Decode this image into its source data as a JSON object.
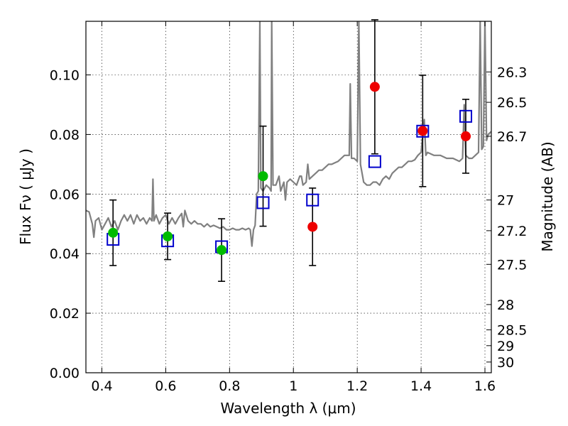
{
  "chart_data": {
    "type": "scatter",
    "xlabel": "Wavelength  λ (μm)",
    "ylabel": "Flux  Fν  ( μJy )",
    "y2label": "Magnitude (AB)",
    "xlim": [
      0.35,
      1.62
    ],
    "ylim": [
      0.0,
      0.118
    ],
    "grid": true,
    "x_ticks": [
      0.4,
      0.6,
      0.8,
      1.0,
      1.2,
      1.4,
      1.6
    ],
    "x_tick_labels": [
      "0.4",
      "0.6",
      "0.8",
      "1",
      "1.2",
      "1.4",
      "1.6"
    ],
    "y_ticks": [
      0.0,
      0.02,
      0.04,
      0.06,
      0.08,
      0.1
    ],
    "y_tick_labels": [
      "0.00",
      "0.02",
      "0.04",
      "0.06",
      "0.08",
      "0.10"
    ],
    "mag_ticks": [
      {
        "label": "26.3",
        "flux": 0.101
      },
      {
        "label": "26.5",
        "flux": 0.0908
      },
      {
        "label": "26.7",
        "flux": 0.0794
      },
      {
        "label": "27",
        "flux": 0.058
      },
      {
        "label": "27.2",
        "flux": 0.0477
      },
      {
        "label": "27.5",
        "flux": 0.0364
      },
      {
        "label": "28",
        "flux": 0.0229
      },
      {
        "label": "28.5",
        "flux": 0.0144
      },
      {
        "label": "29",
        "flux": 0.0091
      },
      {
        "label": "30",
        "flux": 0.0036
      }
    ],
    "colors": {
      "model": "#808080",
      "optical": "#00bb00",
      "nir": "#ee0000",
      "model_band": "#0000cc",
      "errorbar": "#000000"
    },
    "series": [
      {
        "points": [
          {
            "x": 0.435,
            "y": 0.047,
            "err": 0.011
          },
          {
            "x": 0.606,
            "y": 0.0458,
            "err": 0.0078
          },
          {
            "x": 0.775,
            "y": 0.0412,
            "err": 0.0105
          },
          {
            "x": 0.905,
            "y": 0.066,
            "err": 0.0168
          }
        ]
      },
      {
        "points": [
          {
            "x": 1.06,
            "y": 0.049,
            "err": 0.013
          },
          {
            "x": 1.255,
            "y": 0.096,
            "err": 0.0225
          },
          {
            "x": 1.405,
            "y": 0.0812,
            "err": 0.0187
          },
          {
            "x": 1.54,
            "y": 0.0794,
            "err": 0.0124
          }
        ]
      },
      {
        "points": [
          {
            "x": 0.435,
            "y": 0.0448
          },
          {
            "x": 0.606,
            "y": 0.0443
          },
          {
            "x": 0.775,
            "y": 0.0423
          },
          {
            "x": 0.905,
            "y": 0.0571
          },
          {
            "x": 1.06,
            "y": 0.058
          },
          {
            "x": 1.255,
            "y": 0.0709
          },
          {
            "x": 1.405,
            "y": 0.0811
          },
          {
            "x": 1.54,
            "y": 0.0861
          }
        ]
      },
      {
        "line": [
          [
            0.35,
            0.0545
          ],
          [
            0.36,
            0.054
          ],
          [
            0.37,
            0.05
          ],
          [
            0.375,
            0.0455
          ],
          [
            0.38,
            0.051
          ],
          [
            0.39,
            0.052
          ],
          [
            0.4,
            0.048
          ],
          [
            0.41,
            0.05
          ],
          [
            0.42,
            0.052
          ],
          [
            0.43,
            0.049
          ],
          [
            0.44,
            0.051
          ],
          [
            0.45,
            0.048
          ],
          [
            0.46,
            0.051
          ],
          [
            0.47,
            0.053
          ],
          [
            0.48,
            0.051
          ],
          [
            0.49,
            0.053
          ],
          [
            0.5,
            0.05
          ],
          [
            0.51,
            0.053
          ],
          [
            0.52,
            0.051
          ],
          [
            0.53,
            0.052
          ],
          [
            0.54,
            0.05
          ],
          [
            0.55,
            0.052
          ],
          [
            0.557,
            0.051
          ],
          [
            0.56,
            0.065
          ],
          [
            0.563,
            0.051
          ],
          [
            0.57,
            0.053
          ],
          [
            0.58,
            0.05
          ],
          [
            0.59,
            0.052
          ],
          [
            0.6,
            0.053
          ],
          [
            0.61,
            0.05
          ],
          [
            0.62,
            0.052
          ],
          [
            0.63,
            0.05
          ],
          [
            0.64,
            0.052
          ],
          [
            0.65,
            0.0535
          ],
          [
            0.655,
            0.049
          ],
          [
            0.66,
            0.0545
          ],
          [
            0.67,
            0.051
          ],
          [
            0.68,
            0.05
          ],
          [
            0.69,
            0.051
          ],
          [
            0.7,
            0.05
          ],
          [
            0.71,
            0.05
          ],
          [
            0.72,
            0.049
          ],
          [
            0.73,
            0.05
          ],
          [
            0.74,
            0.049
          ],
          [
            0.75,
            0.0495
          ],
          [
            0.76,
            0.049
          ],
          [
            0.77,
            0.0485
          ],
          [
            0.78,
            0.049
          ],
          [
            0.79,
            0.048
          ],
          [
            0.8,
            0.048
          ],
          [
            0.81,
            0.0485
          ],
          [
            0.82,
            0.048
          ],
          [
            0.83,
            0.048
          ],
          [
            0.84,
            0.0485
          ],
          [
            0.85,
            0.048
          ],
          [
            0.86,
            0.0485
          ],
          [
            0.865,
            0.048
          ],
          [
            0.87,
            0.0425
          ],
          [
            0.875,
            0.048
          ],
          [
            0.88,
            0.0495
          ],
          [
            0.885,
            0.06
          ],
          [
            0.89,
            0.061
          ],
          [
            0.895,
            0.118
          ],
          [
            0.898,
            0.062
          ],
          [
            0.905,
            0.061
          ],
          [
            0.915,
            0.063
          ],
          [
            0.925,
            0.062
          ],
          [
            0.93,
            0.061
          ],
          [
            0.932,
            0.118
          ],
          [
            0.936,
            0.063
          ],
          [
            0.945,
            0.063
          ],
          [
            0.955,
            0.066
          ],
          [
            0.96,
            0.061
          ],
          [
            0.97,
            0.064
          ],
          [
            0.975,
            0.058
          ],
          [
            0.98,
            0.064
          ],
          [
            0.99,
            0.065
          ],
          [
            1.0,
            0.064
          ],
          [
            1.01,
            0.063
          ],
          [
            1.02,
            0.066
          ],
          [
            1.025,
            0.066
          ],
          [
            1.03,
            0.063
          ],
          [
            1.04,
            0.064
          ],
          [
            1.045,
            0.07
          ],
          [
            1.05,
            0.065
          ],
          [
            1.06,
            0.066
          ],
          [
            1.07,
            0.067
          ],
          [
            1.08,
            0.068
          ],
          [
            1.09,
            0.068
          ],
          [
            1.1,
            0.069
          ],
          [
            1.11,
            0.07
          ],
          [
            1.12,
            0.07
          ],
          [
            1.13,
            0.0705
          ],
          [
            1.14,
            0.071
          ],
          [
            1.15,
            0.072
          ],
          [
            1.16,
            0.073
          ],
          [
            1.17,
            0.073
          ],
          [
            1.175,
            0.073
          ],
          [
            1.178,
            0.097
          ],
          [
            1.182,
            0.072
          ],
          [
            1.19,
            0.072
          ],
          [
            1.2,
            0.071
          ],
          [
            1.205,
            0.118
          ],
          [
            1.21,
            0.07
          ],
          [
            1.22,
            0.064
          ],
          [
            1.23,
            0.063
          ],
          [
            1.24,
            0.063
          ],
          [
            1.25,
            0.064
          ],
          [
            1.26,
            0.064
          ],
          [
            1.27,
            0.063
          ],
          [
            1.28,
            0.065
          ],
          [
            1.29,
            0.066
          ],
          [
            1.3,
            0.065
          ],
          [
            1.31,
            0.067
          ],
          [
            1.32,
            0.068
          ],
          [
            1.33,
            0.069
          ],
          [
            1.34,
            0.069
          ],
          [
            1.35,
            0.07
          ],
          [
            1.36,
            0.071
          ],
          [
            1.37,
            0.071
          ],
          [
            1.38,
            0.0715
          ],
          [
            1.39,
            0.073
          ],
          [
            1.4,
            0.074
          ],
          [
            1.41,
            0.085
          ],
          [
            1.415,
            0.073
          ],
          [
            1.42,
            0.074
          ],
          [
            1.44,
            0.073
          ],
          [
            1.46,
            0.073
          ],
          [
            1.48,
            0.072
          ],
          [
            1.5,
            0.072
          ],
          [
            1.52,
            0.071
          ],
          [
            1.53,
            0.072
          ],
          [
            1.535,
            0.09
          ],
          [
            1.54,
            0.073
          ],
          [
            1.55,
            0.072
          ],
          [
            1.56,
            0.072
          ],
          [
            1.57,
            0.073
          ],
          [
            1.58,
            0.074
          ],
          [
            1.585,
            0.118
          ],
          [
            1.59,
            0.075
          ],
          [
            1.595,
            0.076
          ],
          [
            1.6,
            0.118
          ],
          [
            1.605,
            0.078
          ],
          [
            1.61,
            0.08
          ],
          [
            1.62,
            0.081
          ]
        ]
      }
    ]
  }
}
